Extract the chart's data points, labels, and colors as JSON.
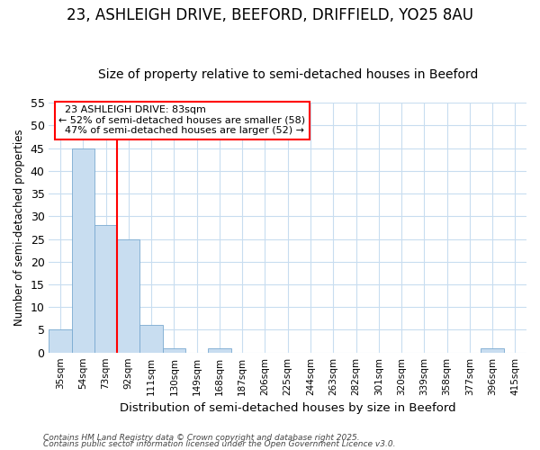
{
  "title_line1": "23, ASHLEIGH DRIVE, BEEFORD, DRIFFIELD, YO25 8AU",
  "title_line2": "Size of property relative to semi-detached houses in Beeford",
  "xlabel": "Distribution of semi-detached houses by size in Beeford",
  "ylabel": "Number of semi-detached properties",
  "footer_line1": "Contains HM Land Registry data © Crown copyright and database right 2025.",
  "footer_line2": "Contains public sector information licensed under the Open Government Licence v3.0.",
  "categories": [
    "35sqm",
    "54sqm",
    "73sqm",
    "92sqm",
    "111sqm",
    "130sqm",
    "149sqm",
    "168sqm",
    "187sqm",
    "206sqm",
    "225sqm",
    "244sqm",
    "263sqm",
    "282sqm",
    "301sqm",
    "320sqm",
    "339sqm",
    "358sqm",
    "377sqm",
    "396sqm",
    "415sqm"
  ],
  "values": [
    5,
    45,
    28,
    25,
    6,
    1,
    0,
    1,
    0,
    0,
    0,
    0,
    0,
    0,
    0,
    0,
    0,
    0,
    0,
    1,
    0
  ],
  "bar_color": "#c8ddf0",
  "bar_edge_color": "#7aaad0",
  "vline_x": 3.0,
  "vline_color": "red",
  "annotation_text": "  23 ASHLEIGH DRIVE: 83sqm  \n← 52% of semi-detached houses are smaller (58)\n  47% of semi-detached houses are larger (52) →",
  "annotation_box_color": "white",
  "annotation_box_edge_color": "red",
  "ylim": [
    0,
    55
  ],
  "yticks": [
    0,
    5,
    10,
    15,
    20,
    25,
    30,
    35,
    40,
    45,
    50,
    55
  ],
  "background_color": "#ffffff",
  "plot_bg_color": "#ffffff",
  "grid_color": "#c8ddf0",
  "title_fontsize": 12,
  "subtitle_fontsize": 10
}
